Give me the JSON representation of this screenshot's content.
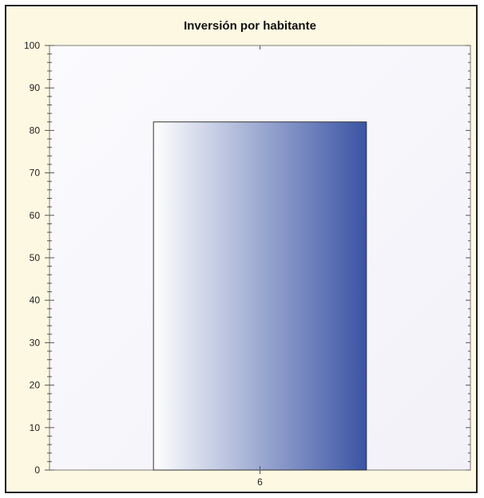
{
  "chart_data": {
    "type": "bar",
    "title": "Inversión por habitante",
    "xlabel": "",
    "ylabel": "",
    "categories": [
      "6"
    ],
    "values": [
      82
    ],
    "ylim": [
      0,
      100
    ],
    "yticks": [
      0,
      10,
      20,
      30,
      40,
      50,
      60,
      70,
      80,
      90,
      100
    ],
    "grid": false,
    "legend": "none",
    "colors": {
      "bar_start": "#ffffff",
      "bar_end": "#3a54a4",
      "plot_background": "#f2f1f8",
      "frame_background": "#fdf8e2"
    }
  }
}
